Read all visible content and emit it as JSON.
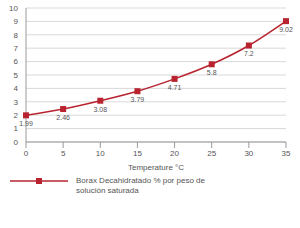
{
  "chart_data": {
    "type": "line",
    "x_label": "Temperature °C",
    "categories": [
      "0",
      "5",
      "10",
      "15",
      "20",
      "25",
      "30",
      "35"
    ],
    "series": [
      {
        "name": "Borax Decahidratado % por peso de solución saturada",
        "color": "#b8232f",
        "marker": "square",
        "values": [
          1.99,
          2.46,
          3.08,
          3.79,
          4.71,
          5.8,
          7.2,
          9.02
        ]
      }
    ],
    "ylim": [
      0,
      10
    ],
    "yticks": [
      0,
      1,
      2,
      3,
      4,
      5,
      6,
      7,
      8,
      9,
      10
    ],
    "grid": true,
    "data_labels": true,
    "legend": "bottom"
  }
}
